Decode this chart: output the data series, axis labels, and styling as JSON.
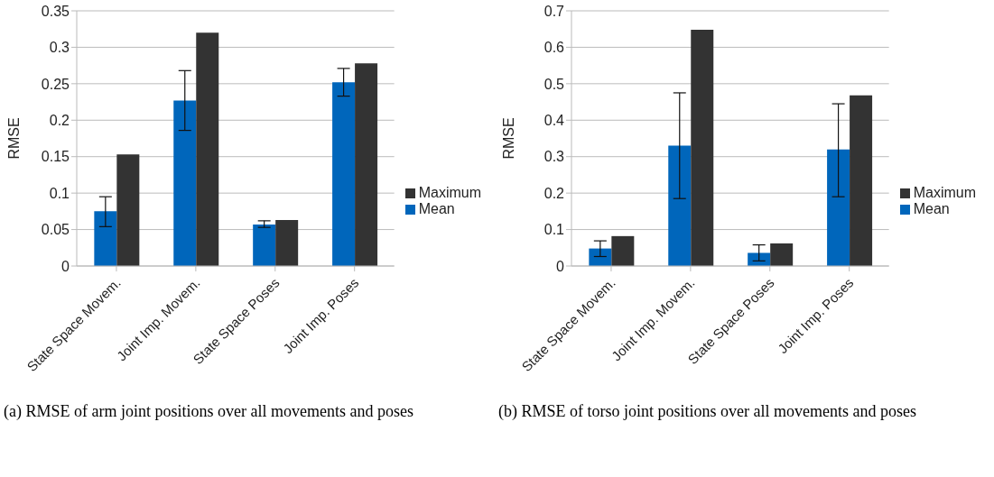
{
  "chart_data": [
    {
      "type": "bar",
      "ylabel": "RMSE",
      "categories": [
        "State Space Movem.",
        "Joint Imp. Movem.",
        "State Space Poses",
        "Joint Imp. Poses"
      ],
      "series": [
        {
          "name": "Mean",
          "color": "#0066bb",
          "values": [
            0.075,
            0.227,
            0.057,
            0.252
          ],
          "errors": [
            [
              0.054,
              0.095
            ],
            [
              0.186,
              0.268
            ],
            [
              0.053,
              0.062
            ],
            [
              0.233,
              0.271
            ]
          ]
        },
        {
          "name": "Maximum",
          "color": "#333333",
          "values": [
            0.153,
            0.32,
            0.063,
            0.278
          ]
        }
      ],
      "ylim": [
        0,
        0.35
      ],
      "yticks": [
        0,
        0.05,
        0.1,
        0.15,
        0.2,
        0.25,
        0.3,
        0.35
      ],
      "grid": "y",
      "legend": "right",
      "annotations": [
        "(a) RMSE of arm joint positions over all movements and poses"
      ]
    },
    {
      "type": "bar",
      "ylabel": "RMSE",
      "categories": [
        "State Space Movem.",
        "Joint Imp. Movem.",
        "State Space Poses",
        "Joint Imp. Poses"
      ],
      "series": [
        {
          "name": "Mean",
          "color": "#0066bb",
          "values": [
            0.048,
            0.33,
            0.036,
            0.32
          ],
          "errors": [
            [
              0.026,
              0.069
            ],
            [
              0.185,
              0.475
            ],
            [
              0.014,
              0.058
            ],
            [
              0.19,
              0.445
            ]
          ]
        },
        {
          "name": "Maximum",
          "color": "#333333",
          "values": [
            0.082,
            0.648,
            0.062,
            0.468
          ]
        }
      ],
      "ylim": [
        0,
        0.7
      ],
      "yticks": [
        0,
        0.1,
        0.2,
        0.3,
        0.4,
        0.5,
        0.6,
        0.7
      ],
      "grid": "y",
      "legend": "right",
      "annotations": [
        "(b) RMSE of torso joint positions over all movements and poses"
      ]
    }
  ]
}
